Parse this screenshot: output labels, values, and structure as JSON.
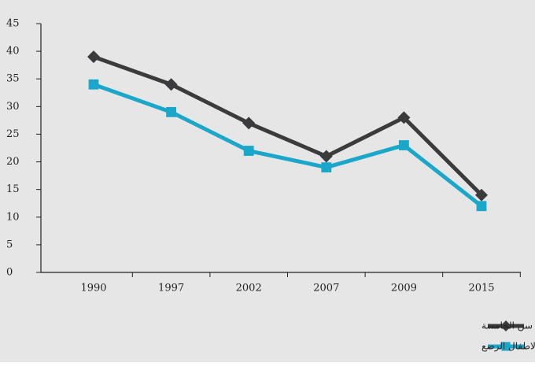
{
  "chart_data": {
    "type": "line",
    "categories": [
      "1990",
      "1997",
      "2002",
      "2007",
      "2009",
      "2015"
    ],
    "series": [
      {
        "name": "معدل الوفاة للاطفال دون سن الخامسة",
        "color": "#3b3b3d",
        "marker": "diamond",
        "values": [
          39,
          34,
          27,
          21,
          28,
          14
        ]
      },
      {
        "name": "معدل وفيات الاطفال الرضع",
        "color": "#1aa7c9",
        "marker": "square",
        "values": [
          34,
          29,
          22,
          19,
          23,
          12
        ]
      }
    ],
    "ylim": [
      0,
      45
    ],
    "yticks": [
      0,
      5,
      10,
      15,
      20,
      25,
      30,
      35,
      40,
      45
    ],
    "grid": false,
    "legend": "bottom"
  }
}
